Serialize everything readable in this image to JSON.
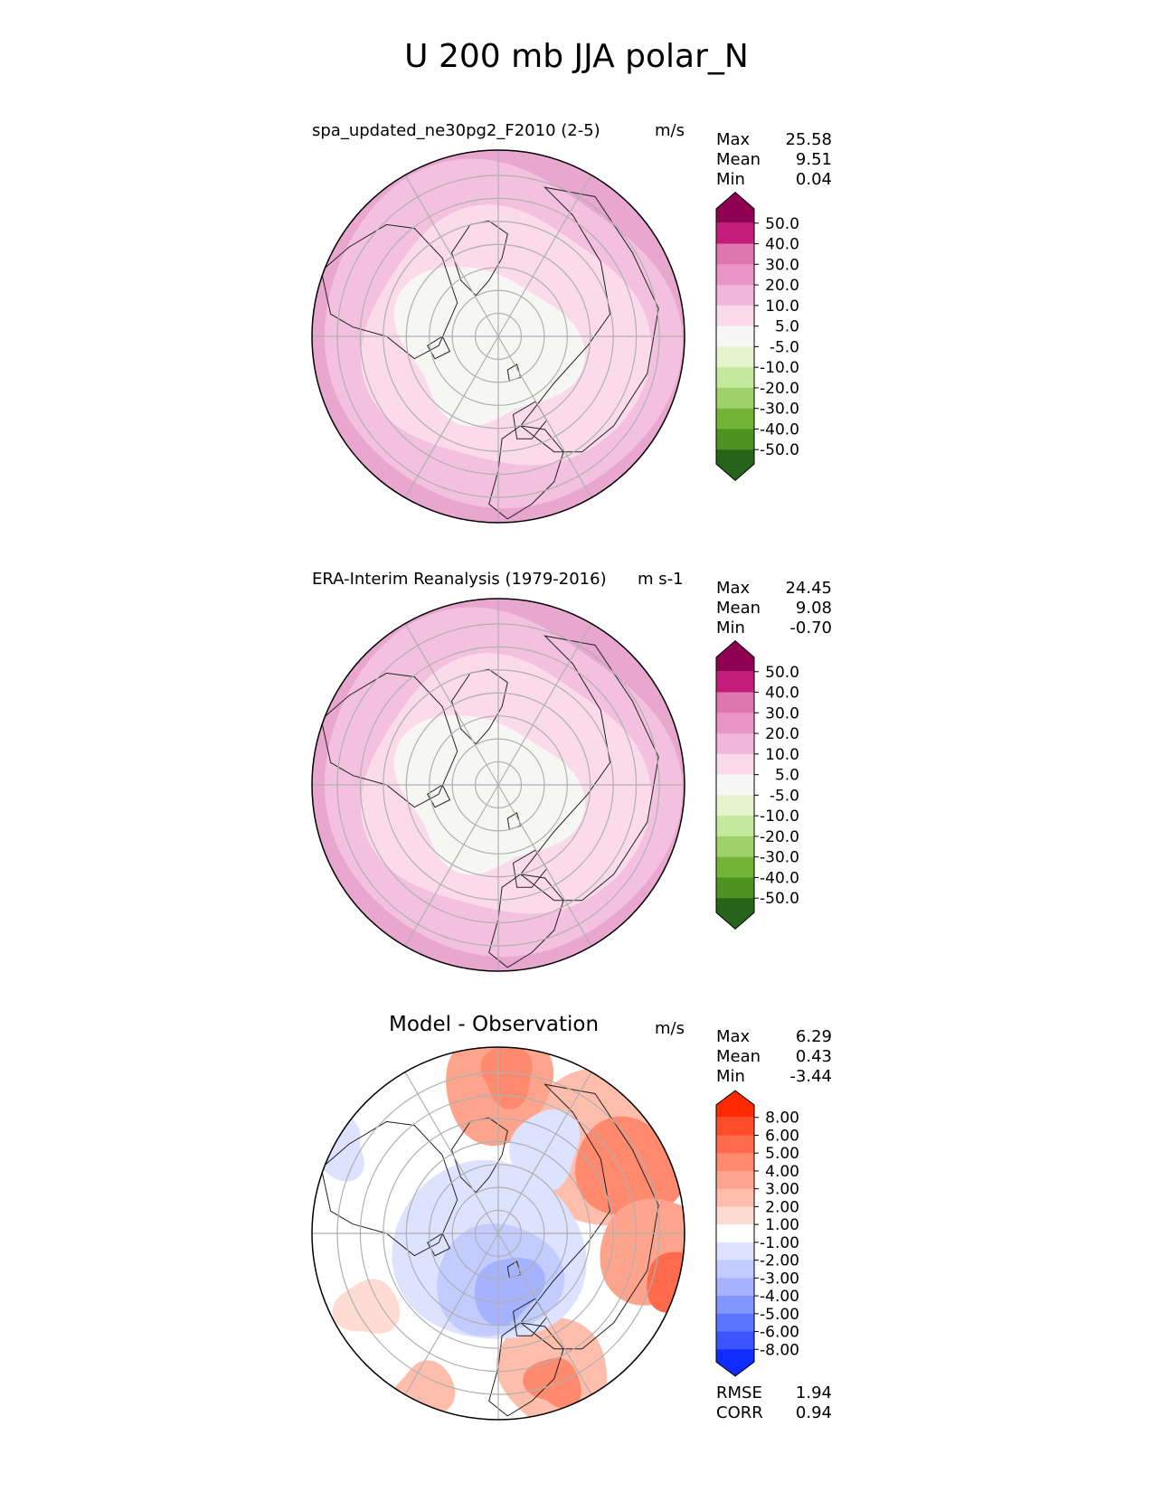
{
  "title": "U 200 mb JJA polar_N",
  "colors": {
    "land_outline": "#222222",
    "grid": "#b0b0b0",
    "ring": "#000000"
  },
  "panels": [
    {
      "id": "test",
      "title": "spa_updated_ne30pg2_F2010 (2-5)",
      "units": "m/s",
      "stats": [
        {
          "label": "Max",
          "value": "25.58"
        },
        {
          "label": "Mean",
          "value": "9.51"
        },
        {
          "label": "Min",
          "value": "0.04"
        }
      ],
      "colorbar": {
        "levels": [
          "50.0",
          "40.0",
          "30.0",
          "20.0",
          "10.0",
          "5.0",
          "-5.0",
          "-10.0",
          "-20.0",
          "-30.0",
          "-40.0",
          "-50.0"
        ],
        "colors": [
          "#8e0152",
          "#c51b7d",
          "#de77ae",
          "#e996c6",
          "#f1b6da",
          "#fbdbea",
          "#f7f7f7",
          "#e6f5d0",
          "#c4e89c",
          "#9fd16a",
          "#73b33a",
          "#4d9221",
          "#276419"
        ]
      },
      "field_colors": {
        "outer": "#e9a6cf",
        "band": "#f3c1df",
        "inner": "#fbdbea",
        "pole": "#f6f6f4"
      }
    },
    {
      "id": "ref",
      "title": "ERA-Interim Reanalysis (1979-2016)",
      "units": "m s-1",
      "stats": [
        {
          "label": "Max",
          "value": "24.45"
        },
        {
          "label": "Mean",
          "value": "9.08"
        },
        {
          "label": "Min",
          "value": "-0.70"
        }
      ],
      "colorbar": {
        "levels": [
          "50.0",
          "40.0",
          "30.0",
          "20.0",
          "10.0",
          "5.0",
          "-5.0",
          "-10.0",
          "-20.0",
          "-30.0",
          "-40.0",
          "-50.0"
        ],
        "colors": [
          "#8e0152",
          "#c51b7d",
          "#de77ae",
          "#e996c6",
          "#f1b6da",
          "#fbdbea",
          "#f7f7f7",
          "#e6f5d0",
          "#c4e89c",
          "#9fd16a",
          "#73b33a",
          "#4d9221",
          "#276419"
        ]
      },
      "field_colors": {
        "outer": "#e9a6cf",
        "band": "#f3c1df",
        "inner": "#fbdbea",
        "pole": "#f6f6f4"
      }
    },
    {
      "id": "diff",
      "title": "Model - Observation",
      "units": "m/s",
      "stats": [
        {
          "label": "Max",
          "value": "6.29"
        },
        {
          "label": "Mean",
          "value": "0.43"
        },
        {
          "label": "Min",
          "value": "-3.44"
        }
      ],
      "colorbar": {
        "levels": [
          "8.00",
          "6.00",
          "5.00",
          "4.00",
          "3.00",
          "2.00",
          "1.00",
          "-1.00",
          "-2.00",
          "-3.00",
          "-4.00",
          "-5.00",
          "-6.00",
          "-8.00"
        ],
        "colors": [
          "#ff2a00",
          "#ff4d2a",
          "#ff6a4d",
          "#ff8a6d",
          "#ffa48c",
          "#ffbeac",
          "#ffdcd3",
          "#ffffff",
          "#dde3ff",
          "#c2ccff",
          "#a5b3ff",
          "#8296ff",
          "#5c75ff",
          "#3a55ff",
          "#0f2cff"
        ]
      },
      "extra_stats": [
        {
          "label": "RMSE",
          "value": "1.94"
        },
        {
          "label": "CORR",
          "value": "0.94"
        }
      ]
    }
  ],
  "chart_data": [
    {
      "type": "heatmap",
      "projection": "north polar stereographic",
      "title": "spa_updated_ne30pg2_F2010 (2-5)",
      "variable": "U 200 mb JJA",
      "units": "m/s",
      "contour_levels": [
        -50,
        -40,
        -30,
        -20,
        -10,
        -5,
        5,
        10,
        20,
        30,
        40,
        50
      ],
      "max": 25.58,
      "mean": 9.51,
      "min": 0.04
    },
    {
      "type": "heatmap",
      "projection": "north polar stereographic",
      "title": "ERA-Interim Reanalysis (1979-2016)",
      "variable": "U 200 mb JJA",
      "units": "m s-1",
      "contour_levels": [
        -50,
        -40,
        -30,
        -20,
        -10,
        -5,
        5,
        10,
        20,
        30,
        40,
        50
      ],
      "max": 24.45,
      "mean": 9.08,
      "min": -0.7
    },
    {
      "type": "heatmap",
      "projection": "north polar stereographic",
      "title": "Model - Observation",
      "units": "m/s",
      "contour_levels": [
        -8,
        -6,
        -5,
        -4,
        -3,
        -2,
        -1,
        1,
        2,
        3,
        4,
        5,
        6,
        8
      ],
      "max": 6.29,
      "mean": 0.43,
      "min": -3.44,
      "rmse": 1.94,
      "corr": 0.94
    }
  ]
}
